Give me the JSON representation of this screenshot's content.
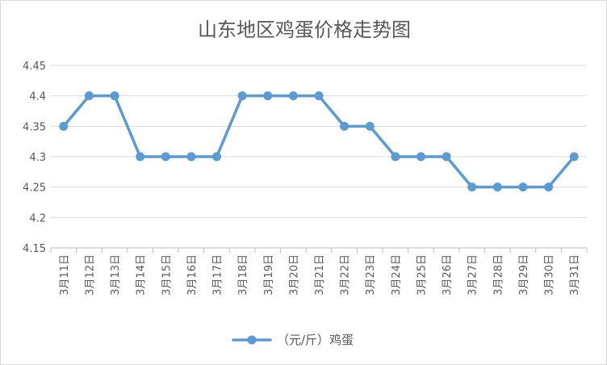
{
  "chart_data": {
    "type": "line",
    "title": "山东地区鸡蛋价格走势图",
    "categories": [
      "3月11日",
      "3月12日",
      "3月13日",
      "3月14日",
      "3月15日",
      "3月16日",
      "3月17日",
      "3月18日",
      "3月19日",
      "3月20日",
      "3月21日",
      "3月22日",
      "3月23日",
      "3月24日",
      "3月25日",
      "3月26日",
      "3月27日",
      "3月28日",
      "3月29日",
      "3月30日",
      "3月31日"
    ],
    "series": [
      {
        "name": "（元/斤）鸡蛋",
        "values": [
          4.35,
          4.4,
          4.4,
          4.3,
          4.3,
          4.3,
          4.3,
          4.4,
          4.4,
          4.4,
          4.4,
          4.35,
          4.35,
          4.3,
          4.3,
          4.3,
          4.25,
          4.25,
          4.25,
          4.25,
          4.3
        ]
      }
    ],
    "yticks": [
      "4.15",
      "4.2",
      "4.25",
      "4.3",
      "4.35",
      "4.4",
      "4.45"
    ],
    "ylim": [
      4.15,
      4.45
    ],
    "grid": true,
    "legend_position": "bottom",
    "series_color": "#5b9bd5"
  }
}
